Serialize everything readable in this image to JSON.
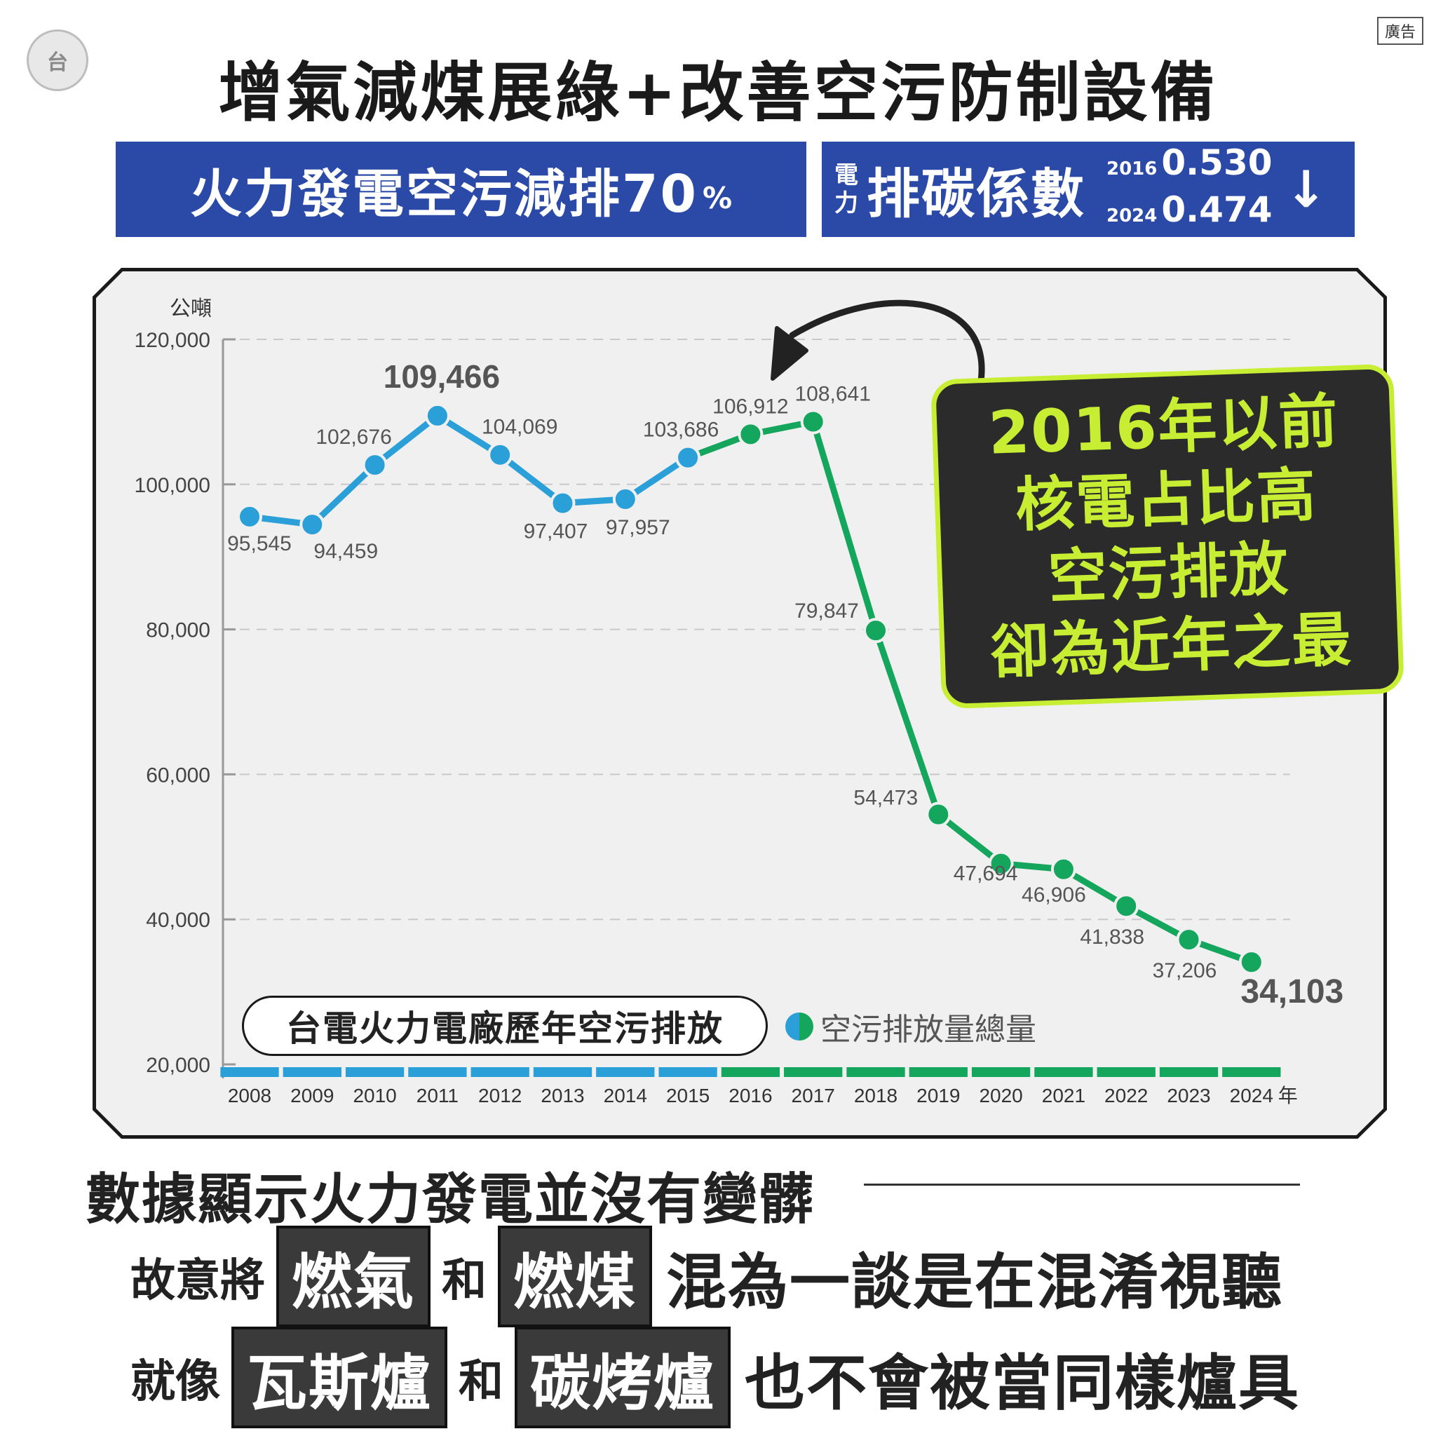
{
  "header": {
    "title": "增氣減煤展綠+改善空污防制設備",
    "ad_badge": "廣告",
    "logo_text": "台"
  },
  "banner_left": {
    "text": "火力發電空污減排70",
    "pct": "%"
  },
  "banner_right": {
    "elec_top": "電",
    "elec_bottom": "力",
    "label": "排碳係數",
    "year_2016": "2016",
    "value_2016": "0.530",
    "year_2024": "2024",
    "value_2024": "0.474",
    "arrow": "↓"
  },
  "callout": {
    "lines": [
      "2016年以前",
      "核電占比高",
      "空污排放",
      "卻為近年之最"
    ]
  },
  "chart_title": "台電火力電廠歷年空污排放",
  "legend_label": "空污排放量總量",
  "colors": {
    "blue": "#2a9fd8",
    "green": "#14a65c",
    "banner": "#2b4aa8",
    "callout_border": "#c8ee34"
  },
  "chart_data": {
    "type": "line",
    "ylabel": "公噸",
    "x_unit": "年",
    "ylim": [
      20000,
      120000
    ],
    "yticks": [
      20000,
      40000,
      60000,
      80000,
      100000,
      120000
    ],
    "ytick_labels": [
      "20,000",
      "40,000",
      "60,000",
      "80,000",
      "100,000",
      "120,000"
    ],
    "categories": [
      "2008",
      "2009",
      "2010",
      "2011",
      "2012",
      "2013",
      "2014",
      "2015",
      "2016",
      "2017",
      "2018",
      "2019",
      "2020",
      "2021",
      "2022",
      "2023",
      "2024"
    ],
    "values": [
      95545,
      94459,
      102676,
      109466,
      104069,
      97407,
      97957,
      103686,
      106912,
      108641,
      79847,
      54473,
      47694,
      46906,
      41838,
      37206,
      34103
    ],
    "value_labels": [
      "95,545",
      "94,459",
      "102,676",
      "109,466",
      "104,069",
      "97,407",
      "97,957",
      "103,686",
      "106,912",
      "108,641",
      "79,847",
      "54,473",
      "47,694",
      "46,906",
      "41,838",
      "37,206",
      "34,103"
    ],
    "series_colors_by_year": [
      "blue",
      "blue",
      "blue",
      "blue",
      "blue",
      "blue",
      "blue",
      "blue",
      "green",
      "green",
      "green",
      "green",
      "green",
      "green",
      "green",
      "green",
      "green"
    ],
    "grid": true
  },
  "bottom": {
    "line1": "數據顯示火力發電並沒有變髒",
    "line2": {
      "pre": "故意將",
      "box1": "燃氣",
      "mid": "和",
      "box2": "燃煤",
      "post": "混為一談是在混淆視聽"
    },
    "line3": {
      "pre": "就像",
      "box1": "瓦斯爐",
      "mid": "和",
      "box2": "碳烤爐",
      "post": "也不會被當同樣爐具"
    }
  }
}
